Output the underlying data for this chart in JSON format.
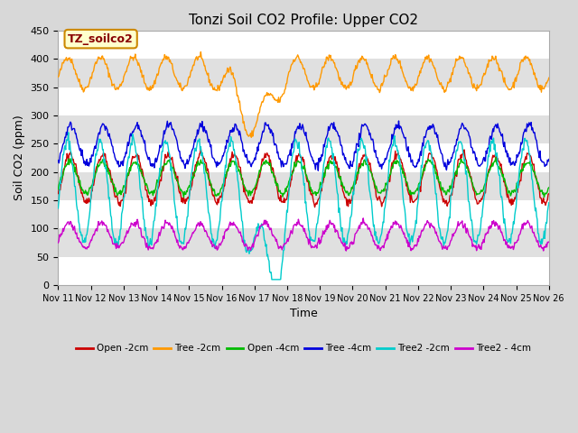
{
  "title": "Tonzi Soil CO2 Profile: Upper CO2",
  "xlabel": "Time",
  "ylabel": "Soil CO2 (ppm)",
  "ylim": [
    0,
    450
  ],
  "yticks": [
    0,
    50,
    100,
    150,
    200,
    250,
    300,
    350,
    400,
    450
  ],
  "xtick_labels": [
    "Nov 11",
    "Nov 12",
    "Nov 13",
    "Nov 14",
    "Nov 15",
    "Nov 16",
    "Nov 17",
    "Nov 18",
    "Nov 19",
    "Nov 20",
    "Nov 21",
    "Nov 22",
    "Nov 23",
    "Nov 24",
    "Nov 25",
    "Nov 26"
  ],
  "legend_label": "TZ_soilco2",
  "series_colors": {
    "Open_2cm": "#cc0000",
    "Tree_2cm": "#ff9900",
    "Open_4cm": "#00bb00",
    "Tree_4cm": "#0000dd",
    "Tree2_2cm": "#00cccc",
    "Tree2_4cm": "#cc00cc"
  },
  "series_labels": {
    "Open_2cm": "Open -2cm",
    "Tree_2cm": "Tree -2cm",
    "Open_4cm": "Open -4cm",
    "Tree_4cm": "Tree -4cm",
    "Tree2_2cm": "Tree2 -2cm",
    "Tree2_4cm": "Tree2 - 4cm"
  },
  "bg_color": "#d8d8d8",
  "plot_bg_light": "#d8d8d8",
  "plot_bg_dark": "#c0c0c0",
  "band_light": "#e0e0e0",
  "band_dark": "#cccccc",
  "annotation_box_color": "#ffffcc",
  "annotation_text_color": "#880000",
  "annotation_border_color": "#cc8800"
}
